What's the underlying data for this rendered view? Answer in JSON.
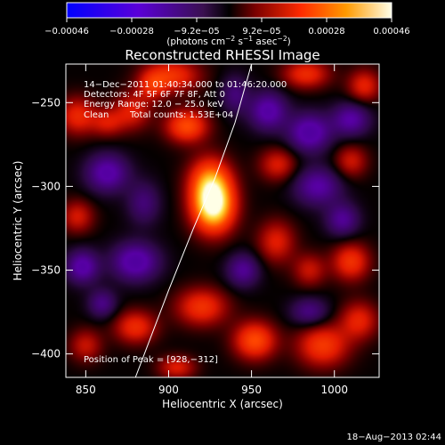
{
  "chart_data": {
    "type": "heatmap",
    "title": "Reconstructed RHESSI Image",
    "xlabel": "Heliocentric X (arcsec)",
    "ylabel": "Heliocentric Y (arcsec)",
    "xlim": [
      838,
      1027
    ],
    "ylim": [
      -414,
      -227
    ],
    "x_ticks": [
      850,
      900,
      950,
      1000
    ],
    "y_ticks": [
      -400,
      -350,
      -300,
      -250
    ],
    "x_tick_labels": [
      "850",
      "900",
      "950",
      "1000"
    ],
    "y_tick_labels": [
      "−400",
      "−350",
      "−300",
      "−250"
    ],
    "colorbar": {
      "range": [
        -0.00046,
        0.00046
      ],
      "tick_labels": [
        "−0.00046",
        "−0.00028",
        "−9.2e−05",
        "9.2e−05",
        "0.00028",
        "0.00046"
      ],
      "unit_prefix": "(photons cm",
      "unit_exp1": "−2",
      "unit_mid": " s",
      "unit_exp2": "−1",
      "unit_end": " asec",
      "unit_exp3": "−2",
      "unit_close": ")"
    },
    "annotations": {
      "time_range": "14−Dec−2011 01:40:34.000 to 01:46:20.000",
      "detectors": "Detectors: 4F 5F 6F 7F 8F, Att 0",
      "energy": "Energy Range: 12.0 − 25.0 keV",
      "clean": "Clean",
      "total_counts": "Total counts: 1.53E+04",
      "peak": "Position of Peak = [928,−312]"
    },
    "peak": {
      "x": 928,
      "y": -312
    },
    "limb_curve": [
      [
        880,
        -414
      ],
      [
        900,
        -362
      ],
      [
        915,
        -325
      ],
      [
        928,
        -295
      ],
      [
        940,
        -262
      ],
      [
        950,
        -227
      ]
    ],
    "blobs": [
      {
        "x": 927,
        "y": -312,
        "sx": 9,
        "sy": 11,
        "a": 1.0
      },
      {
        "x": 925,
        "y": -296,
        "sx": 9,
        "sy": 10,
        "a": 0.55
      },
      {
        "x": 911,
        "y": -264,
        "sx": 9,
        "sy": 7,
        "a": 0.55
      },
      {
        "x": 902,
        "y": -234,
        "sx": 12,
        "sy": 7,
        "a": 0.45
      },
      {
        "x": 878,
        "y": -255,
        "sx": 8,
        "sy": 8,
        "a": 0.35
      },
      {
        "x": 845,
        "y": -258,
        "sx": 8,
        "sy": 8,
        "a": 0.4
      },
      {
        "x": 863,
        "y": -262,
        "sx": 7,
        "sy": 6,
        "a": 0.3
      },
      {
        "x": 983,
        "y": -233,
        "sx": 10,
        "sy": 6,
        "a": 0.42
      },
      {
        "x": 1018,
        "y": -240,
        "sx": 7,
        "sy": 7,
        "a": 0.38
      },
      {
        "x": 966,
        "y": -287,
        "sx": 8,
        "sy": 7,
        "a": 0.35
      },
      {
        "x": 1010,
        "y": -285,
        "sx": 7,
        "sy": 7,
        "a": 0.32
      },
      {
        "x": 965,
        "y": -333,
        "sx": 8,
        "sy": 9,
        "a": 0.36
      },
      {
        "x": 985,
        "y": -350,
        "sx": 7,
        "sy": 7,
        "a": 0.3
      },
      {
        "x": 1010,
        "y": -345,
        "sx": 8,
        "sy": 8,
        "a": 0.45
      },
      {
        "x": 845,
        "y": -318,
        "sx": 7,
        "sy": 7,
        "a": 0.33
      },
      {
        "x": 920,
        "y": -372,
        "sx": 11,
        "sy": 8,
        "a": 0.45
      },
      {
        "x": 880,
        "y": -384,
        "sx": 9,
        "sy": 7,
        "a": 0.42
      },
      {
        "x": 952,
        "y": -392,
        "sx": 9,
        "sy": 8,
        "a": 0.55
      },
      {
        "x": 993,
        "y": -395,
        "sx": 11,
        "sy": 9,
        "a": 0.48
      },
      {
        "x": 1015,
        "y": -380,
        "sx": 8,
        "sy": 8,
        "a": 0.38
      },
      {
        "x": 850,
        "y": -395,
        "sx": 7,
        "sy": 7,
        "a": 0.3
      },
      {
        "x": 905,
        "y": -408,
        "sx": 8,
        "sy": 5,
        "a": 0.35
      },
      {
        "x": 890,
        "y": -240,
        "sx": 6,
        "sy": 6,
        "a": 0.3
      },
      {
        "x": 940,
        "y": -245,
        "sx": 6,
        "sy": 8,
        "a": -0.3
      },
      {
        "x": 863,
        "y": -292,
        "sx": 9,
        "sy": 8,
        "a": -0.5
      },
      {
        "x": 885,
        "y": -310,
        "sx": 7,
        "sy": 9,
        "a": -0.3
      },
      {
        "x": 880,
        "y": -345,
        "sx": 10,
        "sy": 8,
        "a": -0.55
      },
      {
        "x": 848,
        "y": -348,
        "sx": 7,
        "sy": 7,
        "a": -0.5
      },
      {
        "x": 960,
        "y": -255,
        "sx": 8,
        "sy": 8,
        "a": -0.5
      },
      {
        "x": 985,
        "y": -268,
        "sx": 9,
        "sy": 8,
        "a": -0.55
      },
      {
        "x": 1010,
        "y": -260,
        "sx": 8,
        "sy": 7,
        "a": -0.45
      },
      {
        "x": 990,
        "y": -300,
        "sx": 10,
        "sy": 8,
        "a": -0.45
      },
      {
        "x": 1005,
        "y": -320,
        "sx": 7,
        "sy": 7,
        "a": -0.4
      },
      {
        "x": 945,
        "y": -350,
        "sx": 7,
        "sy": 7,
        "a": -0.4
      },
      {
        "x": 985,
        "y": -375,
        "sx": 8,
        "sy": 6,
        "a": -0.35
      },
      {
        "x": 860,
        "y": -370,
        "sx": 6,
        "sy": 6,
        "a": -0.35
      }
    ]
  },
  "footer": {
    "date": "18−Aug−2013 02:44"
  }
}
